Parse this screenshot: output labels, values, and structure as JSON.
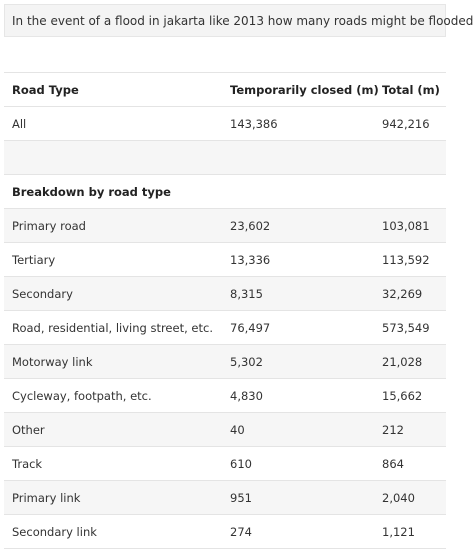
{
  "query": "In the event of a flood in jakarta like 2013 how many roads might be flooded",
  "table": {
    "headers": [
      "Road Type",
      "Temporarily closed (m)",
      "Total (m)"
    ],
    "summary": {
      "type": "All",
      "closed": "143,386",
      "total": "942,216"
    },
    "section_title": "Breakdown by road type",
    "rows": [
      {
        "type": "Primary road",
        "closed": "23,602",
        "total": "103,081"
      },
      {
        "type": "Tertiary",
        "closed": "13,336",
        "total": "113,592"
      },
      {
        "type": "Secondary",
        "closed": "8,315",
        "total": "32,269"
      },
      {
        "type": "Road, residential, living street, etc.",
        "closed": "76,497",
        "total": "573,549"
      },
      {
        "type": "Motorway link",
        "closed": "5,302",
        "total": "21,028"
      },
      {
        "type": "Cycleway, footpath, etc.",
        "closed": "4,830",
        "total": "15,662"
      },
      {
        "type": "Other",
        "closed": "40",
        "total": "212"
      },
      {
        "type": "Track",
        "closed": "610",
        "total": "864"
      },
      {
        "type": "Primary link",
        "closed": "951",
        "total": "2,040"
      },
      {
        "type": "Secondary link",
        "closed": "274",
        "total": "1,121"
      }
    ]
  }
}
